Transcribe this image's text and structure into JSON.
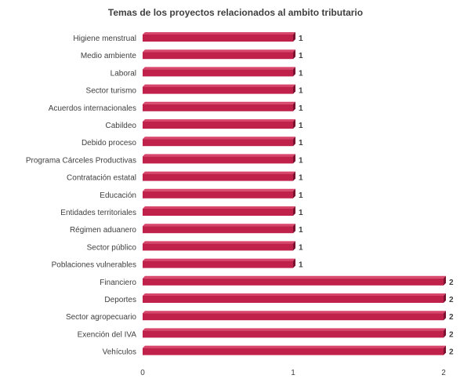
{
  "chart_data": {
    "type": "bar",
    "orientation": "horizontal",
    "title": "Temas de los proyectos relacionados al ambito tributario",
    "categories": [
      "Higiene menstrual",
      "Medio ambiente",
      "Laboral",
      "Sector turismo",
      "Acuerdos internacionales",
      "Cabildeo",
      "Debido proceso",
      "Programa Cárceles Productivas",
      "Contratación estatal",
      "Educación",
      "Entidades territoriales",
      "Régimen aduanero",
      "Sector público",
      "Poblaciones vulnerables",
      "Financiero",
      "Deportes",
      "Sector agropecuario",
      "Exención del IVA",
      "Vehículos"
    ],
    "values": [
      1,
      1,
      1,
      1,
      1,
      1,
      1,
      1,
      1,
      1,
      1,
      1,
      1,
      1,
      2,
      2,
      2,
      2,
      2
    ],
    "data_labels": [
      "1",
      "1",
      "1",
      "1",
      "1",
      "1",
      "1",
      "1",
      "1",
      "1",
      "1",
      "1",
      "1",
      "1",
      "2",
      "2",
      "2",
      "2",
      "2"
    ],
    "xlim": [
      0,
      2
    ],
    "xticks": [
      "0",
      "1",
      "2"
    ],
    "xlabel": "",
    "ylabel": "",
    "grid": false,
    "legend": "none",
    "bar_color": "#c0214a",
    "bar_shadow_color": "#7a1230",
    "bar_highlight_color": "#d9466c"
  }
}
